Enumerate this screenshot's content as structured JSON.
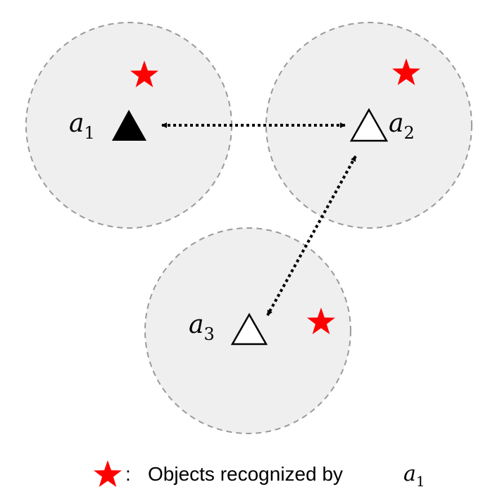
{
  "diagram": {
    "agents": [
      {
        "id": "a1",
        "label_base": "a",
        "label_sub": "1",
        "filled": true
      },
      {
        "id": "a2",
        "label_base": "a",
        "label_sub": "2",
        "filled": false
      },
      {
        "id": "a3",
        "label_base": "a",
        "label_sub": "3",
        "filled": false
      }
    ],
    "links": [
      {
        "from": "a1",
        "to": "a2",
        "style": "dotted-bidirectional"
      },
      {
        "from": "a2",
        "to": "a3",
        "style": "dotted-bidirectional"
      }
    ],
    "objects_count": 3,
    "legend": {
      "text": "Objects recognized by",
      "colon": ":",
      "agent_base": "a",
      "agent_sub": "1"
    },
    "colors": {
      "region_fill": "#efefef",
      "region_stroke": "#9a9a9a",
      "star": "#ff0000",
      "agent": "#000000"
    }
  }
}
